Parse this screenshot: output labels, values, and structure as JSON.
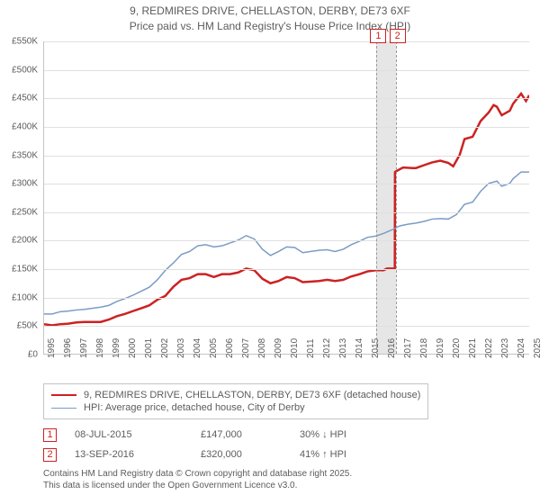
{
  "title_line1": "9, REDMIRES DRIVE, CHELLASTON, DERBY, DE73 6XF",
  "title_line2": "Price paid vs. HM Land Registry's House Price Index (HPI)",
  "chart": {
    "type": "line",
    "background_color": "#ffffff",
    "grid_color": "#e0e0e0",
    "axis_color": "#c5c5c5",
    "text_color": "#5c5c5c",
    "label_fontsize": 10,
    "title_fontsize": 12,
    "x_min_year": 1995,
    "x_max_year": 2025,
    "x_tick_step": 1,
    "y_min": 0,
    "y_max": 550000,
    "y_tick_step": 50000,
    "y_labels": [
      "£0",
      "£50K",
      "£100K",
      "£150K",
      "£200K",
      "£250K",
      "£300K",
      "£350K",
      "£400K",
      "£450K",
      "£500K",
      "£550K"
    ],
    "x_labels": [
      "1995",
      "1996",
      "1997",
      "1998",
      "1999",
      "2000",
      "2001",
      "2002",
      "2003",
      "2004",
      "2005",
      "2006",
      "2007",
      "2008",
      "2009",
      "2010",
      "2011",
      "2012",
      "2013",
      "2014",
      "2015",
      "2016",
      "2017",
      "2018",
      "2019",
      "2020",
      "2021",
      "2022",
      "2023",
      "2024",
      "2025"
    ],
    "highlight_band": {
      "start_year": 2015.52,
      "end_year": 2016.7,
      "color": "#e6e6e6"
    },
    "vertical_marks": [
      {
        "year": 2015.52,
        "label": "1",
        "color": "#cc2222"
      },
      {
        "year": 2016.7,
        "label": "2",
        "color": "#cc2222"
      }
    ],
    "series": [
      {
        "name": "price_paid",
        "label": "9, REDMIRES DRIVE, CHELLASTON, DERBY, DE73 6XF (detached house)",
        "color": "#cc2222",
        "width": 2.5,
        "points": [
          [
            1995,
            52000
          ],
          [
            1995.5,
            50000
          ],
          [
            1996,
            52000
          ],
          [
            1996.5,
            53000
          ],
          [
            1997,
            55000
          ],
          [
            1997.5,
            56000
          ],
          [
            1998,
            56000
          ],
          [
            1998.5,
            56000
          ],
          [
            1999,
            60000
          ],
          [
            1999.5,
            66000
          ],
          [
            2000,
            70000
          ],
          [
            2000.5,
            75000
          ],
          [
            2001,
            80000
          ],
          [
            2001.5,
            85000
          ],
          [
            2002,
            95000
          ],
          [
            2002.5,
            102000
          ],
          [
            2003,
            118000
          ],
          [
            2003.5,
            130000
          ],
          [
            2004,
            133000
          ],
          [
            2004.5,
            140000
          ],
          [
            2005,
            140000
          ],
          [
            2005.5,
            135000
          ],
          [
            2006,
            140000
          ],
          [
            2006.5,
            140000
          ],
          [
            2007,
            143000
          ],
          [
            2007.5,
            150000
          ],
          [
            2008,
            147000
          ],
          [
            2008.5,
            132000
          ],
          [
            2009,
            124000
          ],
          [
            2009.5,
            128000
          ],
          [
            2010,
            135000
          ],
          [
            2010.5,
            133000
          ],
          [
            2011,
            126000
          ],
          [
            2011.5,
            127000
          ],
          [
            2012,
            128000
          ],
          [
            2012.5,
            130000
          ],
          [
            2013,
            128000
          ],
          [
            2013.5,
            130000
          ],
          [
            2014,
            136000
          ],
          [
            2014.5,
            140000
          ],
          [
            2015,
            145000
          ],
          [
            2015.52,
            147000
          ],
          [
            2016,
            147000
          ],
          [
            2016.2,
            150000
          ],
          [
            2016.69,
            150000
          ],
          [
            2016.7,
            320000
          ],
          [
            2017,
            325000
          ],
          [
            2017.2,
            328000
          ],
          [
            2017.8,
            327000
          ],
          [
            2018,
            327000
          ],
          [
            2018.5,
            332000
          ],
          [
            2019,
            337000
          ],
          [
            2019.5,
            340000
          ],
          [
            2020,
            336000
          ],
          [
            2020.3,
            330000
          ],
          [
            2020.7,
            350000
          ],
          [
            2021,
            378000
          ],
          [
            2021.5,
            382000
          ],
          [
            2022,
            410000
          ],
          [
            2022.5,
            425000
          ],
          [
            2022.8,
            438000
          ],
          [
            2023,
            435000
          ],
          [
            2023.3,
            420000
          ],
          [
            2023.8,
            428000
          ],
          [
            2024,
            440000
          ],
          [
            2024.5,
            458000
          ],
          [
            2024.8,
            445000
          ],
          [
            2025,
            455000
          ]
        ]
      },
      {
        "name": "hpi",
        "label": "HPI: Average price, detached house, City of Derby",
        "color": "#7b9cc4",
        "width": 1.5,
        "points": [
          [
            1995,
            70000
          ],
          [
            1995.5,
            70000
          ],
          [
            1996,
            74000
          ],
          [
            1996.5,
            75000
          ],
          [
            1997,
            77000
          ],
          [
            1997.5,
            78000
          ],
          [
            1998,
            80000
          ],
          [
            1998.5,
            82000
          ],
          [
            1999,
            85000
          ],
          [
            1999.5,
            92000
          ],
          [
            2000,
            97000
          ],
          [
            2000.5,
            103000
          ],
          [
            2001,
            110000
          ],
          [
            2001.5,
            117000
          ],
          [
            2002,
            130000
          ],
          [
            2002.5,
            147000
          ],
          [
            2003,
            160000
          ],
          [
            2003.5,
            175000
          ],
          [
            2004,
            180000
          ],
          [
            2004.5,
            190000
          ],
          [
            2005,
            192000
          ],
          [
            2005.5,
            188000
          ],
          [
            2006,
            190000
          ],
          [
            2006.5,
            195000
          ],
          [
            2007,
            200000
          ],
          [
            2007.5,
            208000
          ],
          [
            2008,
            202000
          ],
          [
            2008.5,
            184000
          ],
          [
            2009,
            173000
          ],
          [
            2009.5,
            180000
          ],
          [
            2010,
            188000
          ],
          [
            2010.5,
            187000
          ],
          [
            2011,
            178000
          ],
          [
            2011.5,
            180000
          ],
          [
            2012,
            182000
          ],
          [
            2012.5,
            183000
          ],
          [
            2013,
            180000
          ],
          [
            2013.5,
            184000
          ],
          [
            2014,
            192000
          ],
          [
            2014.5,
            198000
          ],
          [
            2015,
            205000
          ],
          [
            2015.5,
            207000
          ],
          [
            2016,
            212000
          ],
          [
            2016.5,
            218000
          ],
          [
            2017,
            225000
          ],
          [
            2017.5,
            228000
          ],
          [
            2018,
            230000
          ],
          [
            2018.5,
            233000
          ],
          [
            2019,
            237000
          ],
          [
            2019.5,
            238000
          ],
          [
            2020,
            237000
          ],
          [
            2020.5,
            245000
          ],
          [
            2021,
            263000
          ],
          [
            2021.5,
            267000
          ],
          [
            2022,
            286000
          ],
          [
            2022.5,
            300000
          ],
          [
            2023,
            304000
          ],
          [
            2023.3,
            295000
          ],
          [
            2023.8,
            300000
          ],
          [
            2024,
            308000
          ],
          [
            2024.5,
            320000
          ],
          [
            2025,
            320000
          ]
        ]
      }
    ]
  },
  "sales": [
    {
      "marker": "1",
      "date": "08-JUL-2015",
      "price": "£147,000",
      "diff": "30% ↓ HPI",
      "color": "#cc2222"
    },
    {
      "marker": "2",
      "date": "13-SEP-2016",
      "price": "£320,000",
      "diff": "41% ↑ HPI",
      "color": "#cc2222"
    }
  ],
  "footer_line1": "Contains HM Land Registry data © Crown copyright and database right 2025.",
  "footer_line2": "This data is licensed under the Open Government Licence v3.0."
}
